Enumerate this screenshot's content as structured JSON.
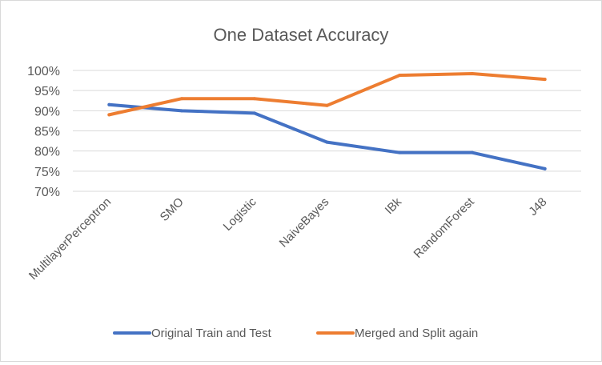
{
  "chart_data": {
    "type": "line",
    "title": "One Dataset Accuracy",
    "xlabel": "",
    "ylabel": "",
    "categories": [
      "MultilayerPerceptron",
      "SMO",
      "Logistic",
      "NaiveBayes",
      "IBk",
      "RandomForest",
      "J48"
    ],
    "yticks": [
      "100%",
      "95%",
      "90%",
      "85%",
      "80%",
      "75%",
      "70%"
    ],
    "ylim": [
      70,
      100
    ],
    "grid": true,
    "legend_position": "bottom",
    "series": [
      {
        "name": "Original Train and Test",
        "color": "#4472c4",
        "values": [
          91.5,
          90.0,
          89.4,
          82.2,
          79.6,
          79.6,
          75.6
        ]
      },
      {
        "name": "Merged and Split again",
        "color": "#ed7d31",
        "values": [
          89.0,
          93.0,
          93.0,
          91.3,
          98.8,
          99.2,
          97.8
        ]
      }
    ]
  }
}
